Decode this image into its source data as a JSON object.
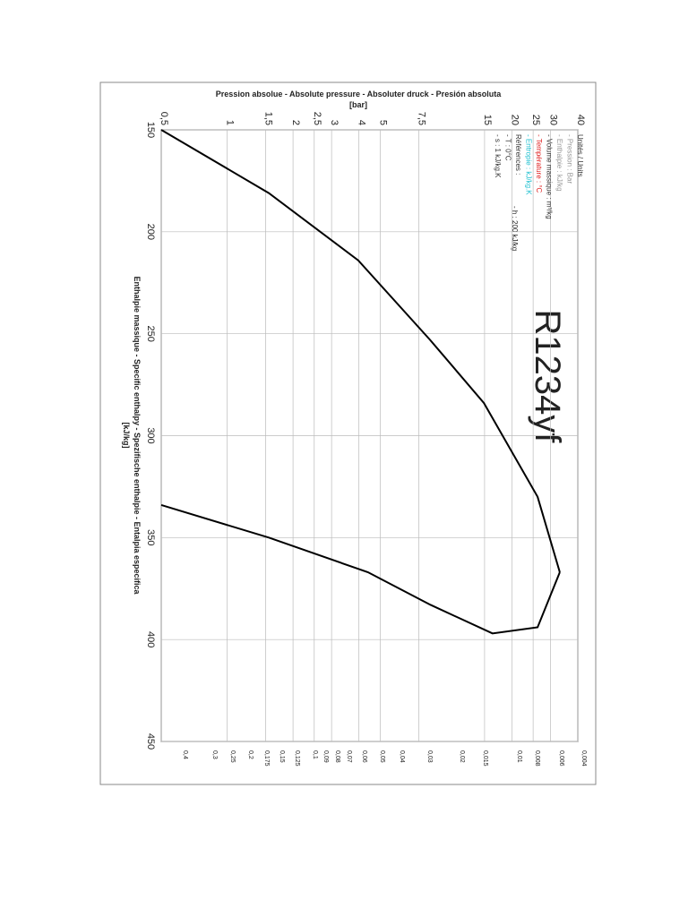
{
  "chart_data": {
    "type": "line",
    "title": "R1234yf",
    "ylabel": "Pression absolue - Absolute pressure - Absoluter druck - Presión absoluta",
    "yunit": "[bar]",
    "xlabel": "Enthalpie massique - Specific enthalpy - Spezifische enthalpie - Entalpia especifica",
    "xunit": "[kJ/kg]",
    "ylog": true,
    "grid": true,
    "ylim": [
      0.5,
      40
    ],
    "yticks": [
      {
        "value": 0.5,
        "label": "0,5"
      },
      1,
      {
        "value": 1.5,
        "label": "1,5"
      },
      2,
      {
        "value": 2.5,
        "label": "2,5"
      },
      3,
      4,
      5,
      {
        "value": 7.5,
        "label": "7,5"
      },
      15,
      20,
      25,
      30,
      40
    ],
    "xlim": [
      150,
      450
    ],
    "xticks": [
      150,
      200,
      250,
      300,
      350,
      400,
      450
    ],
    "series": [
      {
        "color": "#000000",
        "x": [
          150,
          181,
          214,
          253,
          284,
          330,
          367
        ],
        "values": [
          0.5,
          1.55,
          3.97,
          8.45,
          14.9,
          26.2,
          33.1
        ]
      },
      {
        "color": "#000000",
        "x": [
          334,
          350,
          367,
          383,
          397,
          394,
          367
        ],
        "values": [
          0.5,
          1.55,
          4.4,
          8.5,
          16.3,
          26.2,
          33.1
        ]
      }
    ],
    "volume_labels": [
      "0,4",
      "0,3",
      "0,25",
      "0,2",
      "0,175",
      "0,15",
      "0,125",
      "0,1",
      "0,09",
      "0,08",
      "0,07",
      "0,06",
      "0,05",
      "0,04",
      "0,03",
      "0,02",
      "0,015",
      "0,01",
      "0,008",
      "0,006",
      "0,004"
    ],
    "legend": [
      {
        "text": "Unités / Units",
        "color": "#333333"
      },
      {
        "text": "- Pression : Bar",
        "color": "#999999"
      },
      {
        "text": "- Enthalpie : kJ/kg",
        "color": "#999999"
      },
      {
        "text": "- Volume massique : m³/kg",
        "color": "#333333"
      },
      {
        "text": "- Température : °C",
        "color": "#e02020"
      },
      {
        "text": "- Entropie : kJ/kg.K",
        "color": "#20c0d0"
      },
      {
        "text": "Références :",
        "color": "#333333"
      },
      {
        "text": "- T : 0°C",
        "color": "#333333"
      },
      {
        "text": "- s : 1 kJ/kg.K",
        "color": "#333333"
      }
    ],
    "reference_h": "- h : 200 kJ/kg"
  }
}
